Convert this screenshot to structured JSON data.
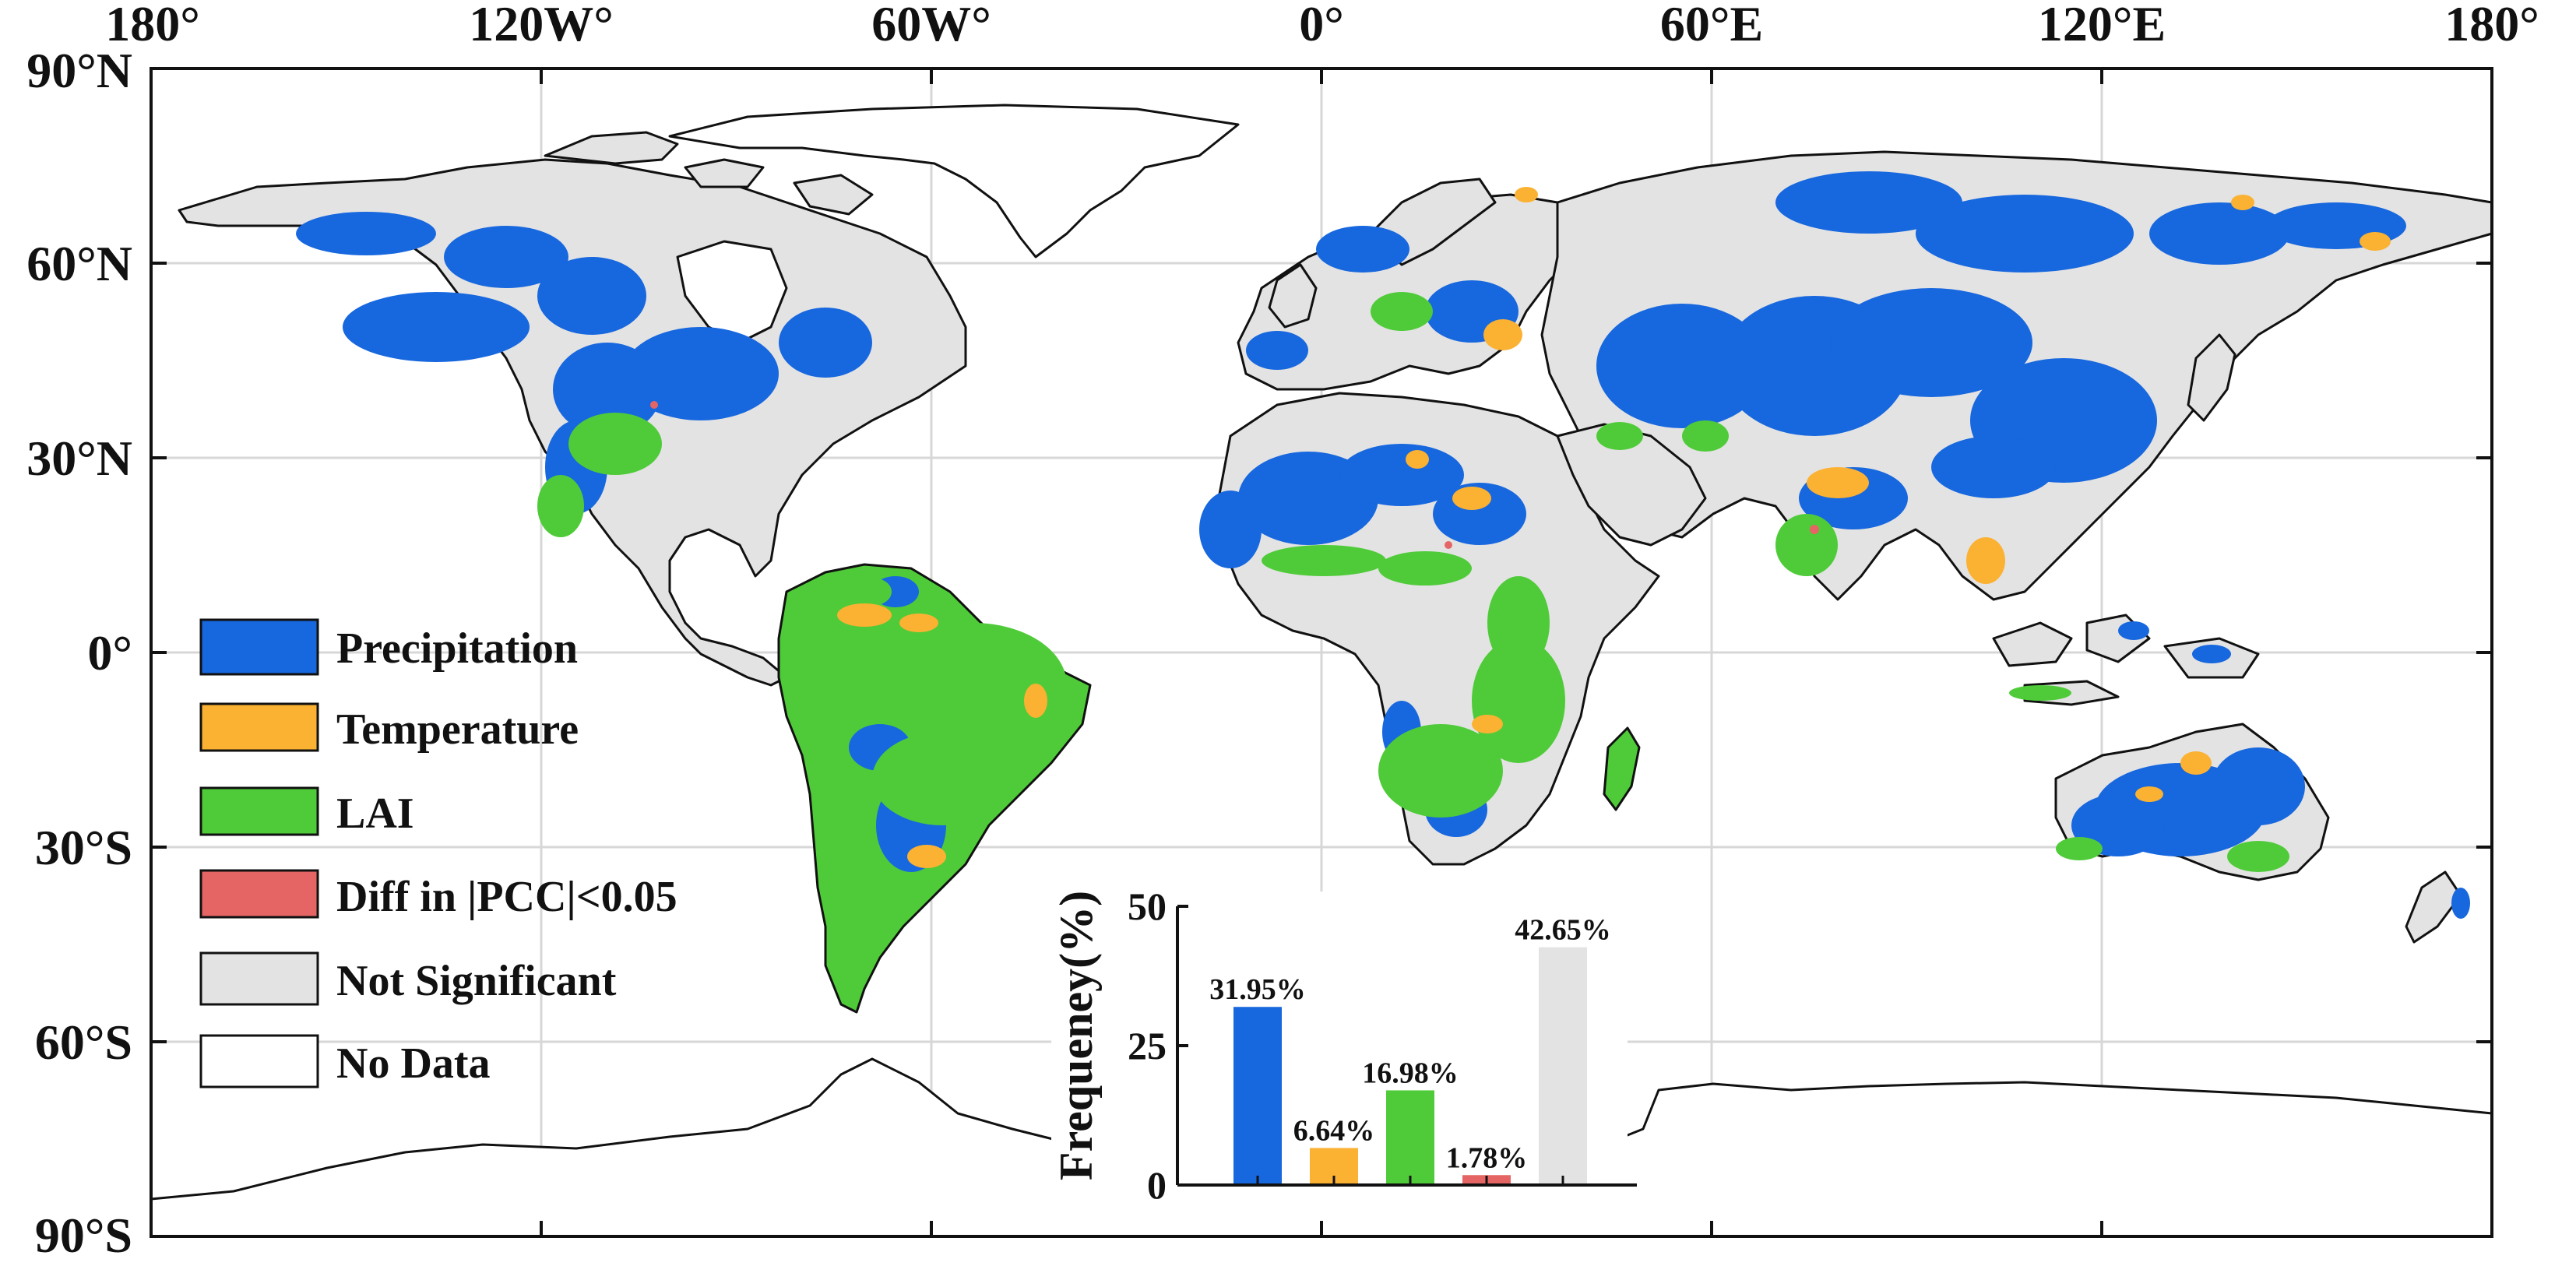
{
  "map": {
    "lon_labels": [
      "180°",
      "120W°",
      "60W°",
      "0°",
      "60°E",
      "120°E",
      "180°"
    ],
    "lat_labels": [
      "90°N",
      "60°N",
      "30°N",
      "0°",
      "30°S",
      "60°S",
      "90°S"
    ]
  },
  "legend": {
    "items": [
      {
        "label": "Precipitation",
        "color": "#1767de"
      },
      {
        "label": "Temperature",
        "color": "#fbb132"
      },
      {
        "label": "LAI",
        "color": "#4fcb39"
      },
      {
        "label": "Diff in |PCC|<0.05",
        "color": "#e56565"
      },
      {
        "label": "Not Significant",
        "color": "#e3e3e3"
      },
      {
        "label": "No Data",
        "color": "#ffffff"
      }
    ]
  },
  "chart_data": {
    "type": "bar",
    "categories": [
      "Precipitation",
      "Temperature",
      "LAI",
      "Diff in |PCC|<0.05",
      "Not Significant"
    ],
    "values": [
      31.95,
      6.64,
      16.98,
      1.78,
      42.65
    ],
    "value_labels": [
      "31.95%",
      "6.64%",
      "16.98%",
      "1.78%",
      "42.65%"
    ],
    "colors": [
      "#1767de",
      "#fbb132",
      "#4fcb39",
      "#e56565",
      "#e3e3e3"
    ],
    "ylabel": "Frequeney(%)",
    "yticks": [
      "0",
      "25",
      "50"
    ],
    "ylim": [
      0,
      50
    ]
  }
}
